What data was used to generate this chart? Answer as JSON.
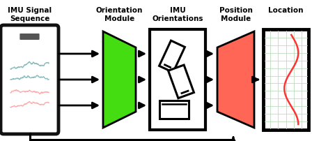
{
  "bg_color": "#ffffff",
  "labels": {
    "imu_signal": "IMU Signal\nSequence",
    "orientation_module": "Orientation\nModule",
    "imu_orientations": "IMU\nOrientations",
    "position_module": "Position\nModule",
    "location": "Location"
  },
  "green_color": "#44dd11",
  "red_color": "#ff6655",
  "arrow_color": "#000000",
  "phone_color": "#111111",
  "label_fontsize": 7.5,
  "figsize": [
    4.48,
    2.02
  ],
  "dpi": 100
}
